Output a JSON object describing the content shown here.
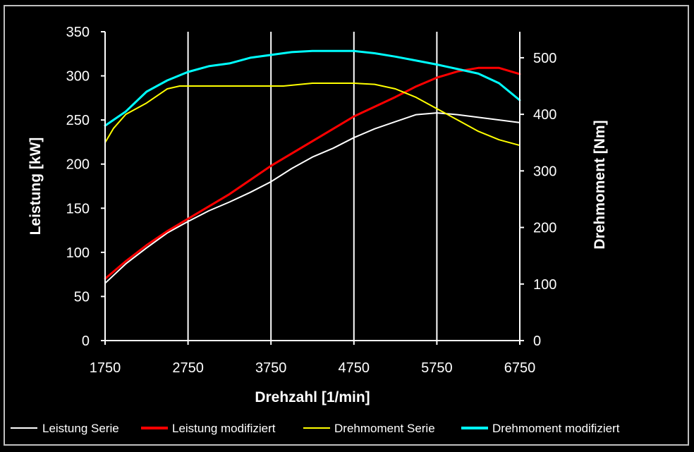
{
  "chart_data": {
    "type": "line",
    "xlabel": "Drehzahl [1/min]",
    "ylabel": "Leistung [kW]",
    "y2label": "Drehmoment [Nm]",
    "xlim": [
      1750,
      6750
    ],
    "ylim": [
      0,
      350
    ],
    "y2lim": [
      0,
      546
    ],
    "xticks": [
      1750,
      2750,
      3750,
      4750,
      5750,
      6750
    ],
    "yticks": [
      0,
      50,
      100,
      150,
      200,
      250,
      300,
      350
    ],
    "y2ticks": [
      0,
      100,
      200,
      300,
      400,
      500
    ],
    "grid": "vertical",
    "legend": "bottom",
    "colors": {
      "background": "#000000",
      "plot_background": "#000000",
      "frame": "#c0c0c0",
      "grid": "#ffffff",
      "text": "#ffffff"
    },
    "series": [
      {
        "name": "Leistung Serie",
        "axis": "left",
        "color": "#ffffff",
        "x": [
          1750,
          2000,
          2250,
          2500,
          2750,
          3000,
          3250,
          3500,
          3750,
          4000,
          4250,
          4500,
          4750,
          5000,
          5250,
          5500,
          5750,
          6000,
          6250,
          6500,
          6750
        ],
        "y": [
          65,
          87,
          105,
          122,
          135,
          147,
          157,
          168,
          180,
          195,
          208,
          218,
          230,
          240,
          248,
          256,
          258,
          256,
          253,
          250,
          247
        ]
      },
      {
        "name": "Leistung modifiziert",
        "axis": "left",
        "color": "#ff0000",
        "x": [
          1750,
          2000,
          2250,
          2500,
          2750,
          3000,
          3250,
          3500,
          3750,
          4000,
          4250,
          4500,
          4750,
          5000,
          5250,
          5500,
          5750,
          6000,
          6250,
          6500,
          6750
        ],
        "y": [
          70,
          90,
          108,
          124,
          138,
          152,
          166,
          182,
          198,
          212,
          226,
          240,
          254,
          265,
          276,
          288,
          298,
          305,
          309,
          309,
          302
        ]
      },
      {
        "name": "Drehmoment Serie",
        "axis": "right",
        "color": "#ffff00",
        "x": [
          1750,
          1850,
          2000,
          2250,
          2500,
          2650,
          3000,
          3500,
          3900,
          4250,
          4500,
          4750,
          5000,
          5250,
          5500,
          5750,
          6000,
          6250,
          6500,
          6750
        ],
        "y": [
          350,
          375,
          400,
          420,
          445,
          450,
          450,
          450,
          450,
          455,
          455,
          455,
          453,
          445,
          430,
          410,
          390,
          370,
          355,
          345
        ]
      },
      {
        "name": "Drehmoment modifiziert",
        "axis": "right",
        "color": "#00ffff",
        "x": [
          1750,
          2000,
          2250,
          2500,
          2750,
          3000,
          3250,
          3500,
          3750,
          4000,
          4250,
          4500,
          4750,
          5000,
          5250,
          5500,
          5750,
          6000,
          6250,
          6500,
          6750
        ],
        "y": [
          380,
          405,
          440,
          460,
          475,
          485,
          490,
          500,
          505,
          510,
          512,
          512,
          512,
          508,
          502,
          495,
          488,
          480,
          472,
          455,
          425
        ]
      }
    ]
  }
}
